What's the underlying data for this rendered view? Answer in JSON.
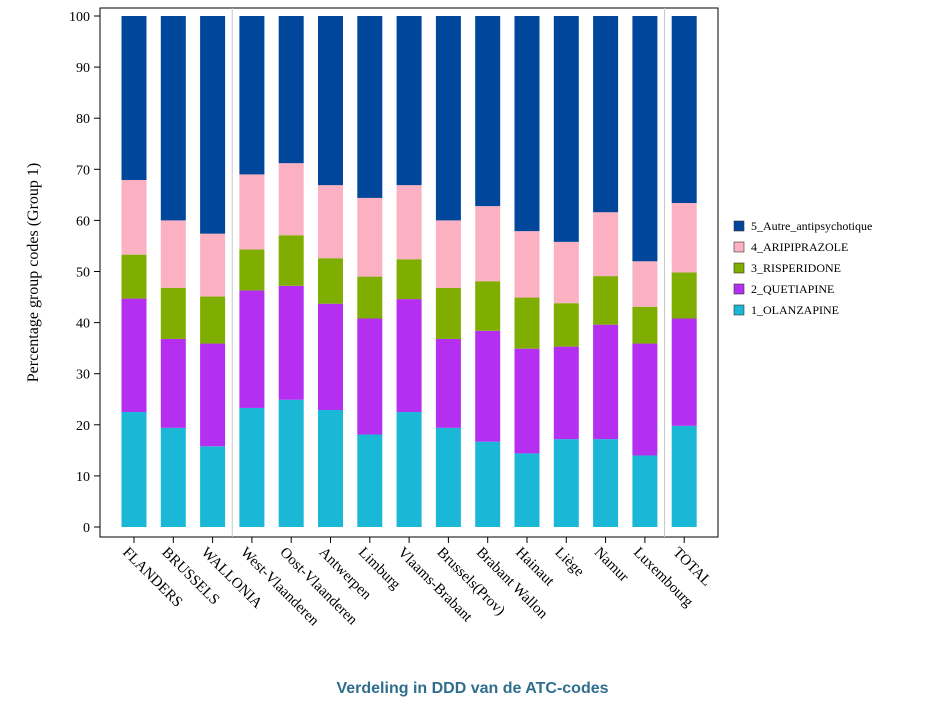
{
  "chart_data": {
    "type": "bar",
    "stacked": true,
    "ylabel": "Percentage group codes (Group 1)",
    "ylim": [
      0,
      100
    ],
    "yticks": [
      0,
      10,
      20,
      30,
      40,
      50,
      60,
      70,
      80,
      90,
      100
    ],
    "categories": [
      "FLANDERS",
      "BRUSSELS",
      "WALLONIA",
      "West-Vlaanderen",
      "Oost-Vlaanderen",
      "Antwerpen",
      "Limburg",
      "Vlaams-Brabant",
      "Brussels(Prov)",
      "Brabant Wallon",
      "Hainaut",
      "Liège",
      "Namur",
      "Luxembourg",
      "TOTAL"
    ],
    "group_separators_after": [
      2,
      13
    ],
    "series": [
      {
        "name": "1_OLANZAPINE",
        "color": "#1ab8d6",
        "values": [
          22.5,
          19.4,
          15.8,
          23.3,
          24.9,
          22.9,
          18.1,
          22.5,
          19.4,
          16.7,
          14.4,
          17.2,
          17.2,
          14.0,
          19.8
        ]
      },
      {
        "name": "2_QUETIAPINE",
        "color": "#b52ff0",
        "values": [
          22.2,
          17.4,
          20.1,
          23.0,
          22.3,
          20.8,
          22.7,
          22.1,
          17.4,
          21.7,
          20.5,
          18.1,
          22.4,
          21.9,
          21.0
        ]
      },
      {
        "name": "3_RISPERIDONE",
        "color": "#7fae00",
        "values": [
          8.6,
          10.0,
          9.2,
          8.0,
          9.9,
          8.9,
          8.2,
          7.8,
          10.0,
          9.7,
          10.0,
          8.5,
          9.5,
          7.2,
          9.0
        ]
      },
      {
        "name": "4_ARIPIPRAZOLE",
        "color": "#fbb1c2",
        "values": [
          14.6,
          13.2,
          12.3,
          14.7,
          14.1,
          14.3,
          15.4,
          14.5,
          13.2,
          14.7,
          13.0,
          12.0,
          12.5,
          8.9,
          13.6
        ]
      },
      {
        "name": "5_Autre_antipsychotique",
        "color": "#00479c",
        "values": [
          32.1,
          40.0,
          42.6,
          31.0,
          28.8,
          33.1,
          35.6,
          33.1,
          40.0,
          37.2,
          42.1,
          44.2,
          38.4,
          48.0,
          36.6
        ]
      }
    ],
    "legend": {
      "position": "right",
      "order": [
        "5_Autre_antipsychotique",
        "4_ARIPIPRAZOLE",
        "3_RISPERIDONE",
        "2_QUETIAPINE",
        "1_OLANZAPINE"
      ]
    },
    "grid": false
  },
  "caption": "Verdeling in DDD van de ATC-codes"
}
